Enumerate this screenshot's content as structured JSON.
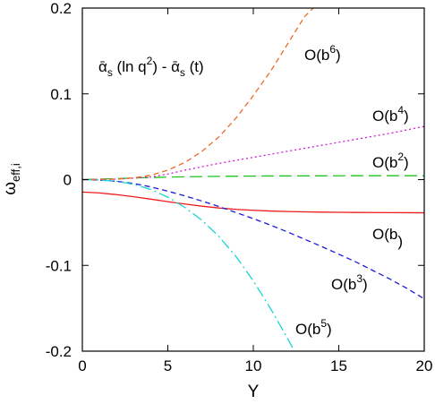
{
  "chart_data": {
    "type": "line",
    "title": "",
    "xlabel": "Y",
    "ylabel_base": "ω",
    "ylabel_sub": "eff,i",
    "xlim": [
      0,
      20
    ],
    "ylim": [
      -0.2,
      0.2
    ],
    "x_ticks": [
      0,
      5,
      10,
      15,
      20
    ],
    "x_tick_labels": [
      "0",
      "5",
      "10",
      "15",
      "20"
    ],
    "y_ticks": [
      -0.2,
      -0.1,
      0,
      0.1,
      0.2
    ],
    "y_tick_labels": [
      "-0.2",
      "-0.1",
      "0",
      "0.1",
      "0.2"
    ],
    "grid": false,
    "annotation": {
      "alpha1": "ᾱ",
      "sub1": "s",
      "mid": " (ln q",
      "sup": "2",
      "mid2": ") - ",
      "alpha2": "ᾱ",
      "sub2": "s",
      "end": " (t)"
    },
    "series": [
      {
        "name": "O(b)",
        "label_base": "O(b",
        "label_sup": "",
        "label_end": ")",
        "color": "#ee1c1c",
        "dash": "solid",
        "x": [
          0,
          1,
          2,
          3,
          4,
          5,
          6,
          7,
          8,
          9,
          10,
          11,
          12,
          13,
          14,
          15,
          16,
          17,
          18,
          19,
          20
        ],
        "y": [
          -0.0145,
          -0.0155,
          -0.0175,
          -0.02,
          -0.0228,
          -0.0257,
          -0.0285,
          -0.031,
          -0.0331,
          -0.0347,
          -0.0358,
          -0.0366,
          -0.0372,
          -0.0376,
          -0.0379,
          -0.0381,
          -0.0383,
          -0.0384,
          -0.0385,
          -0.0386,
          -0.0387
        ]
      },
      {
        "name": "O(b2)",
        "label_base": "O(b",
        "label_sup": "2",
        "label_end": ")",
        "color": "#1ec21e",
        "dash": "longdash",
        "x": [
          0,
          2,
          4,
          6,
          8,
          10,
          12,
          14,
          16,
          18,
          20
        ],
        "y": [
          0,
          0.0012,
          0.0025,
          0.0033,
          0.0038,
          0.0041,
          0.0043,
          0.0044,
          0.0045,
          0.0045,
          0.0045
        ]
      },
      {
        "name": "O(b3)",
        "label_base": "O(b",
        "label_sup": "3",
        "label_end": ")",
        "color": "#1a1ad6",
        "dash": "dash",
        "x": [
          0,
          1,
          2,
          3,
          4,
          5,
          6,
          7,
          8,
          9,
          10,
          11,
          12,
          13,
          14,
          15,
          16,
          17,
          18,
          19,
          20
        ],
        "y": [
          0,
          -0.0005,
          -0.002,
          -0.0045,
          -0.0085,
          -0.0135,
          -0.019,
          -0.025,
          -0.0315,
          -0.0385,
          -0.0455,
          -0.053,
          -0.061,
          -0.0695,
          -0.078,
          -0.087,
          -0.096,
          -0.106,
          -0.116,
          -0.127,
          -0.139
        ]
      },
      {
        "name": "O(b4)",
        "label_base": "O(b",
        "label_sup": "4",
        "label_end": ")",
        "color": "#d41ad4",
        "dash": "dot",
        "x": [
          0,
          2,
          4,
          5,
          6,
          8,
          10,
          12,
          14,
          16,
          18,
          20
        ],
        "y": [
          0,
          0.0005,
          0.003,
          0.0065,
          0.011,
          0.019,
          0.026,
          0.033,
          0.04,
          0.047,
          0.054,
          0.062
        ]
      },
      {
        "name": "O(b5)",
        "label_base": "O(b",
        "label_sup": "5",
        "label_end": ")",
        "color": "#1ad4d4",
        "dash": "dashdot",
        "x": [
          0,
          1,
          2,
          3,
          4,
          5,
          6,
          7,
          8,
          9,
          10,
          11,
          12,
          12.4
        ],
        "y": [
          0,
          -0.0005,
          -0.002,
          -0.0055,
          -0.0115,
          -0.0205,
          -0.0325,
          -0.0475,
          -0.0665,
          -0.09,
          -0.118,
          -0.15,
          -0.185,
          -0.2
        ]
      },
      {
        "name": "O(b6)",
        "label_base": "O(b",
        "label_sup": "6",
        "label_end": ")",
        "color": "#ee6a2c",
        "dash": "dash",
        "x": [
          0,
          2,
          3,
          4,
          5,
          6,
          7,
          8,
          9,
          10,
          11,
          12,
          13,
          13.5
        ],
        "y": [
          0,
          0.0005,
          0.002,
          0.005,
          0.011,
          0.02,
          0.033,
          0.05,
          0.072,
          0.098,
          0.126,
          0.158,
          0.19,
          0.2
        ]
      }
    ]
  }
}
